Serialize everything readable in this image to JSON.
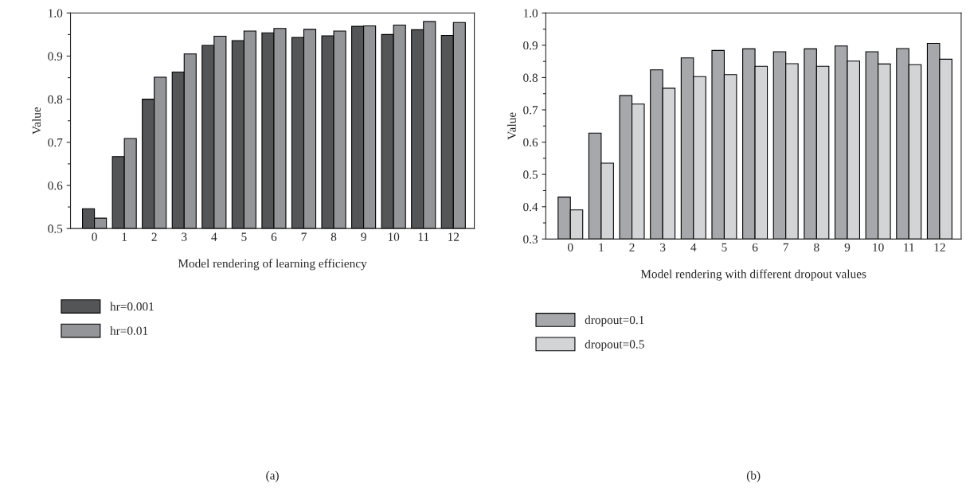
{
  "chart_data": [
    {
      "type": "bar",
      "xlabel": "Model rendering of learning efficiency",
      "ylabel": "Value",
      "categories": [
        "0",
        "1",
        "2",
        "3",
        "4",
        "5",
        "6",
        "7",
        "8",
        "9",
        "10",
        "11",
        "12"
      ],
      "series": [
        {
          "name": "hr=0.001",
          "color": "#545557",
          "values": [
            0.546,
            0.667,
            0.8,
            0.863,
            0.925,
            0.936,
            0.954,
            0.943,
            0.947,
            0.969,
            0.95,
            0.961,
            0.948
          ]
        },
        {
          "name": "hr=0.01",
          "color": "#949598",
          "values": [
            0.524,
            0.709,
            0.851,
            0.905,
            0.946,
            0.958,
            0.964,
            0.962,
            0.958,
            0.97,
            0.972,
            0.98,
            0.978
          ]
        }
      ],
      "ylim": [
        0.5,
        1.0
      ],
      "yticks": [
        0.5,
        {
          "value": 0.55,
          "label": null
        },
        0.6,
        {
          "value": 0.65,
          "label": null
        },
        0.7,
        {
          "value": 0.75,
          "label": null
        },
        0.8,
        {
          "value": 0.85,
          "label": null
        },
        0.9,
        {
          "value": 0.95,
          "label": null
        },
        {
          "value": 1.0,
          "label": "1.0"
        }
      ],
      "legend": "bottom left",
      "grid": false,
      "annotations": [
        "(a)"
      ]
    },
    {
      "type": "bar",
      "xlabel": "Model rendering with different dropout values",
      "ylabel": "Value",
      "categories": [
        "0",
        "1",
        "2",
        "3",
        "4",
        "5",
        "6",
        "7",
        "8",
        "9",
        "10",
        "11",
        "12"
      ],
      "series": [
        {
          "name": "dropout=0.1",
          "color": "#a7a8ab",
          "values": [
            0.43,
            0.628,
            0.744,
            0.824,
            0.861,
            0.884,
            0.889,
            0.88,
            0.889,
            0.898,
            0.88,
            0.89,
            0.906
          ]
        },
        {
          "name": "dropout=0.5",
          "color": "#d3d4d6",
          "values": [
            0.39,
            0.535,
            0.718,
            0.767,
            0.803,
            0.809,
            0.835,
            0.843,
            0.835,
            0.851,
            0.842,
            0.84,
            0.857
          ]
        }
      ],
      "ylim": [
        0.3,
        1.0
      ],
      "yticks": [
        0.3,
        {
          "value": 0.35,
          "label": null
        },
        0.4,
        {
          "value": 0.45,
          "label": null
        },
        0.5,
        {
          "value": 0.55,
          "label": null
        },
        0.6,
        {
          "value": 0.65,
          "label": null
        },
        0.7,
        {
          "value": 0.75,
          "label": null
        },
        0.8,
        {
          "value": 0.85,
          "label": null
        },
        0.9,
        {
          "value": 0.95,
          "label": null
        },
        {
          "value": 1.0,
          "label": "1.0"
        }
      ],
      "legend": "bottom left",
      "grid": false,
      "annotations": [
        "(b)"
      ]
    }
  ]
}
